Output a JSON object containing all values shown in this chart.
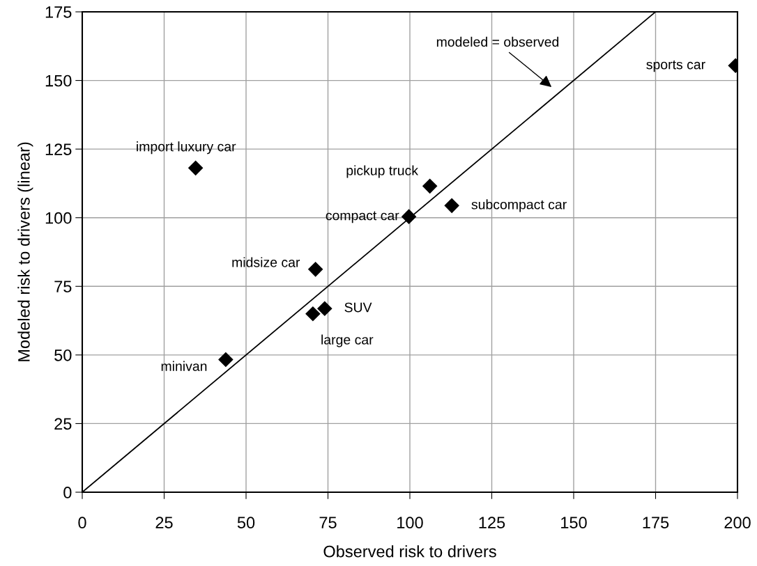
{
  "chart_data": {
    "type": "scatter",
    "xlabel": "Observed risk to drivers",
    "ylabel": "Modeled risk to drivers (linear)",
    "xlim": [
      0,
      200
    ],
    "xticks": [
      0,
      25,
      50,
      75,
      100,
      125,
      150,
      175,
      200
    ],
    "ylim": [
      0,
      175
    ],
    "yticks": [
      0,
      25,
      50,
      75,
      100,
      125,
      150,
      175
    ],
    "grid": true,
    "marker": "diamond",
    "series": [
      {
        "name": "import luxury car",
        "color": "#000000",
        "x": [
          34.6
        ],
        "values": [
          118.1
        ]
      },
      {
        "name": "midsize car",
        "color": "#000000",
        "x": [
          71.2
        ],
        "values": [
          81.2
        ]
      },
      {
        "name": "pickup truck",
        "color": "#000000",
        "x": [
          106.1
        ],
        "values": [
          111.5
        ]
      },
      {
        "name": "subcompact car",
        "color": "#000000",
        "x": [
          112.8
        ],
        "values": [
          104.4
        ]
      },
      {
        "name": "compact car",
        "color": "#000000",
        "x": [
          99.7
        ],
        "values": [
          100.4
        ]
      },
      {
        "name": "sports car",
        "color": "#000000",
        "x": [
          199.4
        ],
        "values": [
          155.4
        ]
      },
      {
        "name": "large car",
        "color": "#000000",
        "x": [
          70.4
        ],
        "values": [
          65.0
        ]
      },
      {
        "name": "SUV",
        "color": "#000000",
        "x": [
          74.0
        ],
        "values": [
          66.9
        ]
      },
      {
        "name": "minivan",
        "color": "#000000",
        "x": [
          43.8
        ],
        "values": [
          48.3
        ]
      },
      {
        "type": "line",
        "color": "#000000",
        "x": [
          0,
          175
        ],
        "values": [
          0,
          175
        ],
        "marker": "none"
      }
    ],
    "annotations": [
      "modeled = observed"
    ]
  }
}
